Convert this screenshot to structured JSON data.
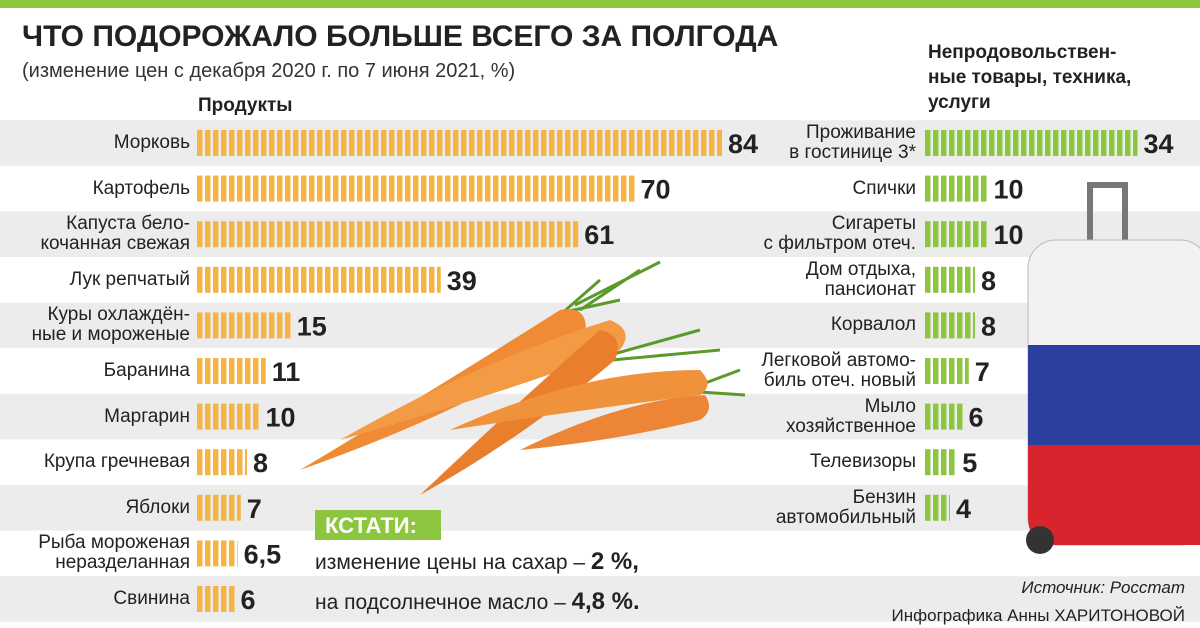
{
  "header": {
    "title": "ЧТО ПОДОРОЖАЛО БОЛЬШЕ ВСЕГО ЗА ПОЛГОДА",
    "subtitle": "(изменение цен с декабря 2020 г. по 7 июня 2021, %)"
  },
  "chart_data": [
    {
      "type": "bar",
      "orientation": "horizontal",
      "title": "Продукты",
      "color": "#f6b445",
      "categories": [
        "Морковь",
        "Картофель",
        "Капуста бело-\nкочанная свежая",
        "Лук репчатый",
        "Куры охлаждён-\nные и мороженые",
        "Баранина",
        "Маргарин",
        "Крупа гречневая",
        "Яблоки",
        "Рыба мороженая\nнеразделанная",
        "Свинина"
      ],
      "values": [
        84,
        70,
        61,
        39,
        15,
        11,
        10,
        8,
        7,
        6.5,
        6
      ],
      "value_labels": [
        "84",
        "70",
        "61",
        "39",
        "15",
        "11",
        "10",
        "8",
        "7",
        "6,5",
        "6"
      ]
    },
    {
      "type": "bar",
      "orientation": "horizontal",
      "title": "Непродовольствен-\nные товары, техника,\nуслуги",
      "color": "#8cc63f",
      "categories": [
        "Проживание\nв гостинице 3*",
        "Спички",
        "Сигареты\nс фильтром отеч.",
        "Дом отдыха,\nпансионат",
        "Корвалол",
        "Легковой автомо-\nбиль отеч. новый",
        "Мыло\nхозяйственное",
        "Телевизоры",
        "Бензин\nавтомобильный"
      ],
      "values": [
        34,
        10,
        10,
        8,
        8,
        7,
        6,
        5,
        4
      ]
    }
  ],
  "note": {
    "title": "КСТАТИ:",
    "lines": [
      {
        "text": "изменение цены на сахар – ",
        "value": "2 %,"
      },
      {
        "text": "на подсолнечное масло – ",
        "value": "4,8 %."
      }
    ]
  },
  "source": "Источник: Росстат",
  "credit": "Инфографика Анны ХАРИТОНОВОЙ"
}
